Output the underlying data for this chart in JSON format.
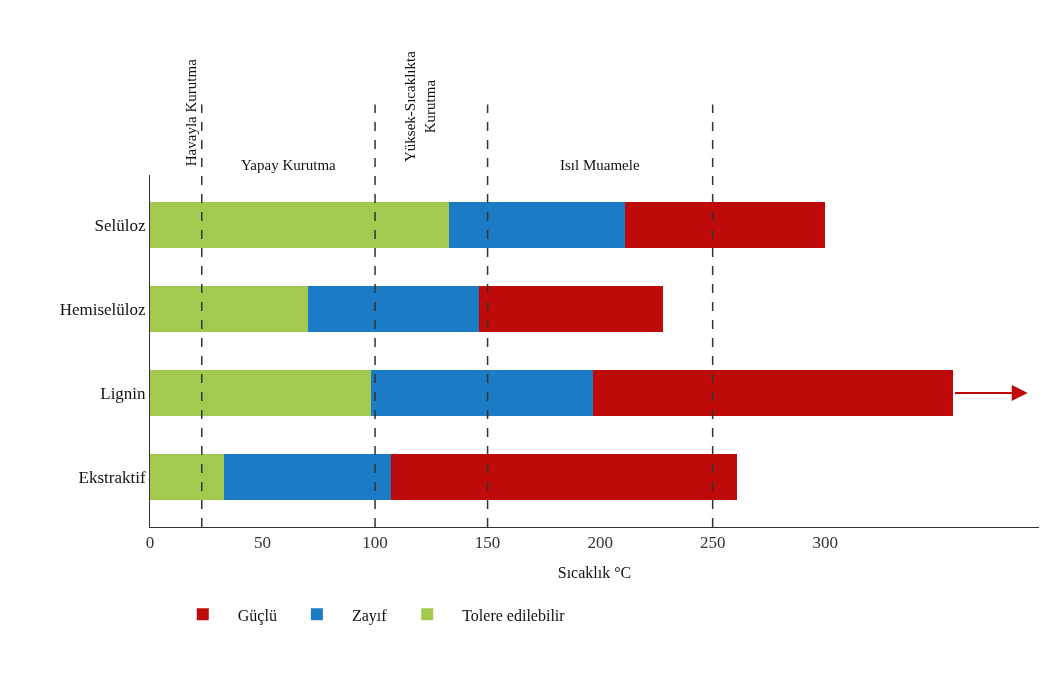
{
  "chart_data": {
    "type": "bar",
    "orientation": "horizontal",
    "stacked": true,
    "xlabel": "Sıcaklık °C",
    "categories": [
      "Selüloz",
      "Hemiselüloz",
      "Lignin",
      "Ekstraktif"
    ],
    "series": [
      {
        "name": "Tolere edilebilir",
        "color": "#a3c94f",
        "values": [
          133,
          70,
          98,
          33
        ]
      },
      {
        "name": "Zayıf",
        "color": "#1b7bc4",
        "values": [
          78,
          76,
          99,
          74
        ]
      },
      {
        "name": "Güçlü",
        "color": "#bf0a0a",
        "values": [
          89,
          82,
          160,
          154
        ]
      }
    ],
    "xlim": [
      0,
      395
    ],
    "xticks": [
      0,
      50,
      100,
      150,
      200,
      250,
      300
    ],
    "ref_lines": [
      {
        "axis": "x",
        "value": 23,
        "label": "Havayla Kurutma",
        "color": "#333333",
        "line_style": "dashed"
      },
      {
        "axis": "x",
        "value": 100,
        "label": null,
        "color": "#333333",
        "line_style": "dashed"
      },
      {
        "axis": "x",
        "value": 150,
        "label": null,
        "color": "#333333",
        "line_style": "dashed"
      },
      {
        "axis": "x",
        "value": 250,
        "label": null,
        "color": "#333333",
        "line_style": "dashed"
      }
    ],
    "annotations": [
      "Yapay Kurutma",
      "Yüksek-Sıcaklıkta Kurutma",
      "Isıl Muamele"
    ],
    "legend": "bottom"
  }
}
